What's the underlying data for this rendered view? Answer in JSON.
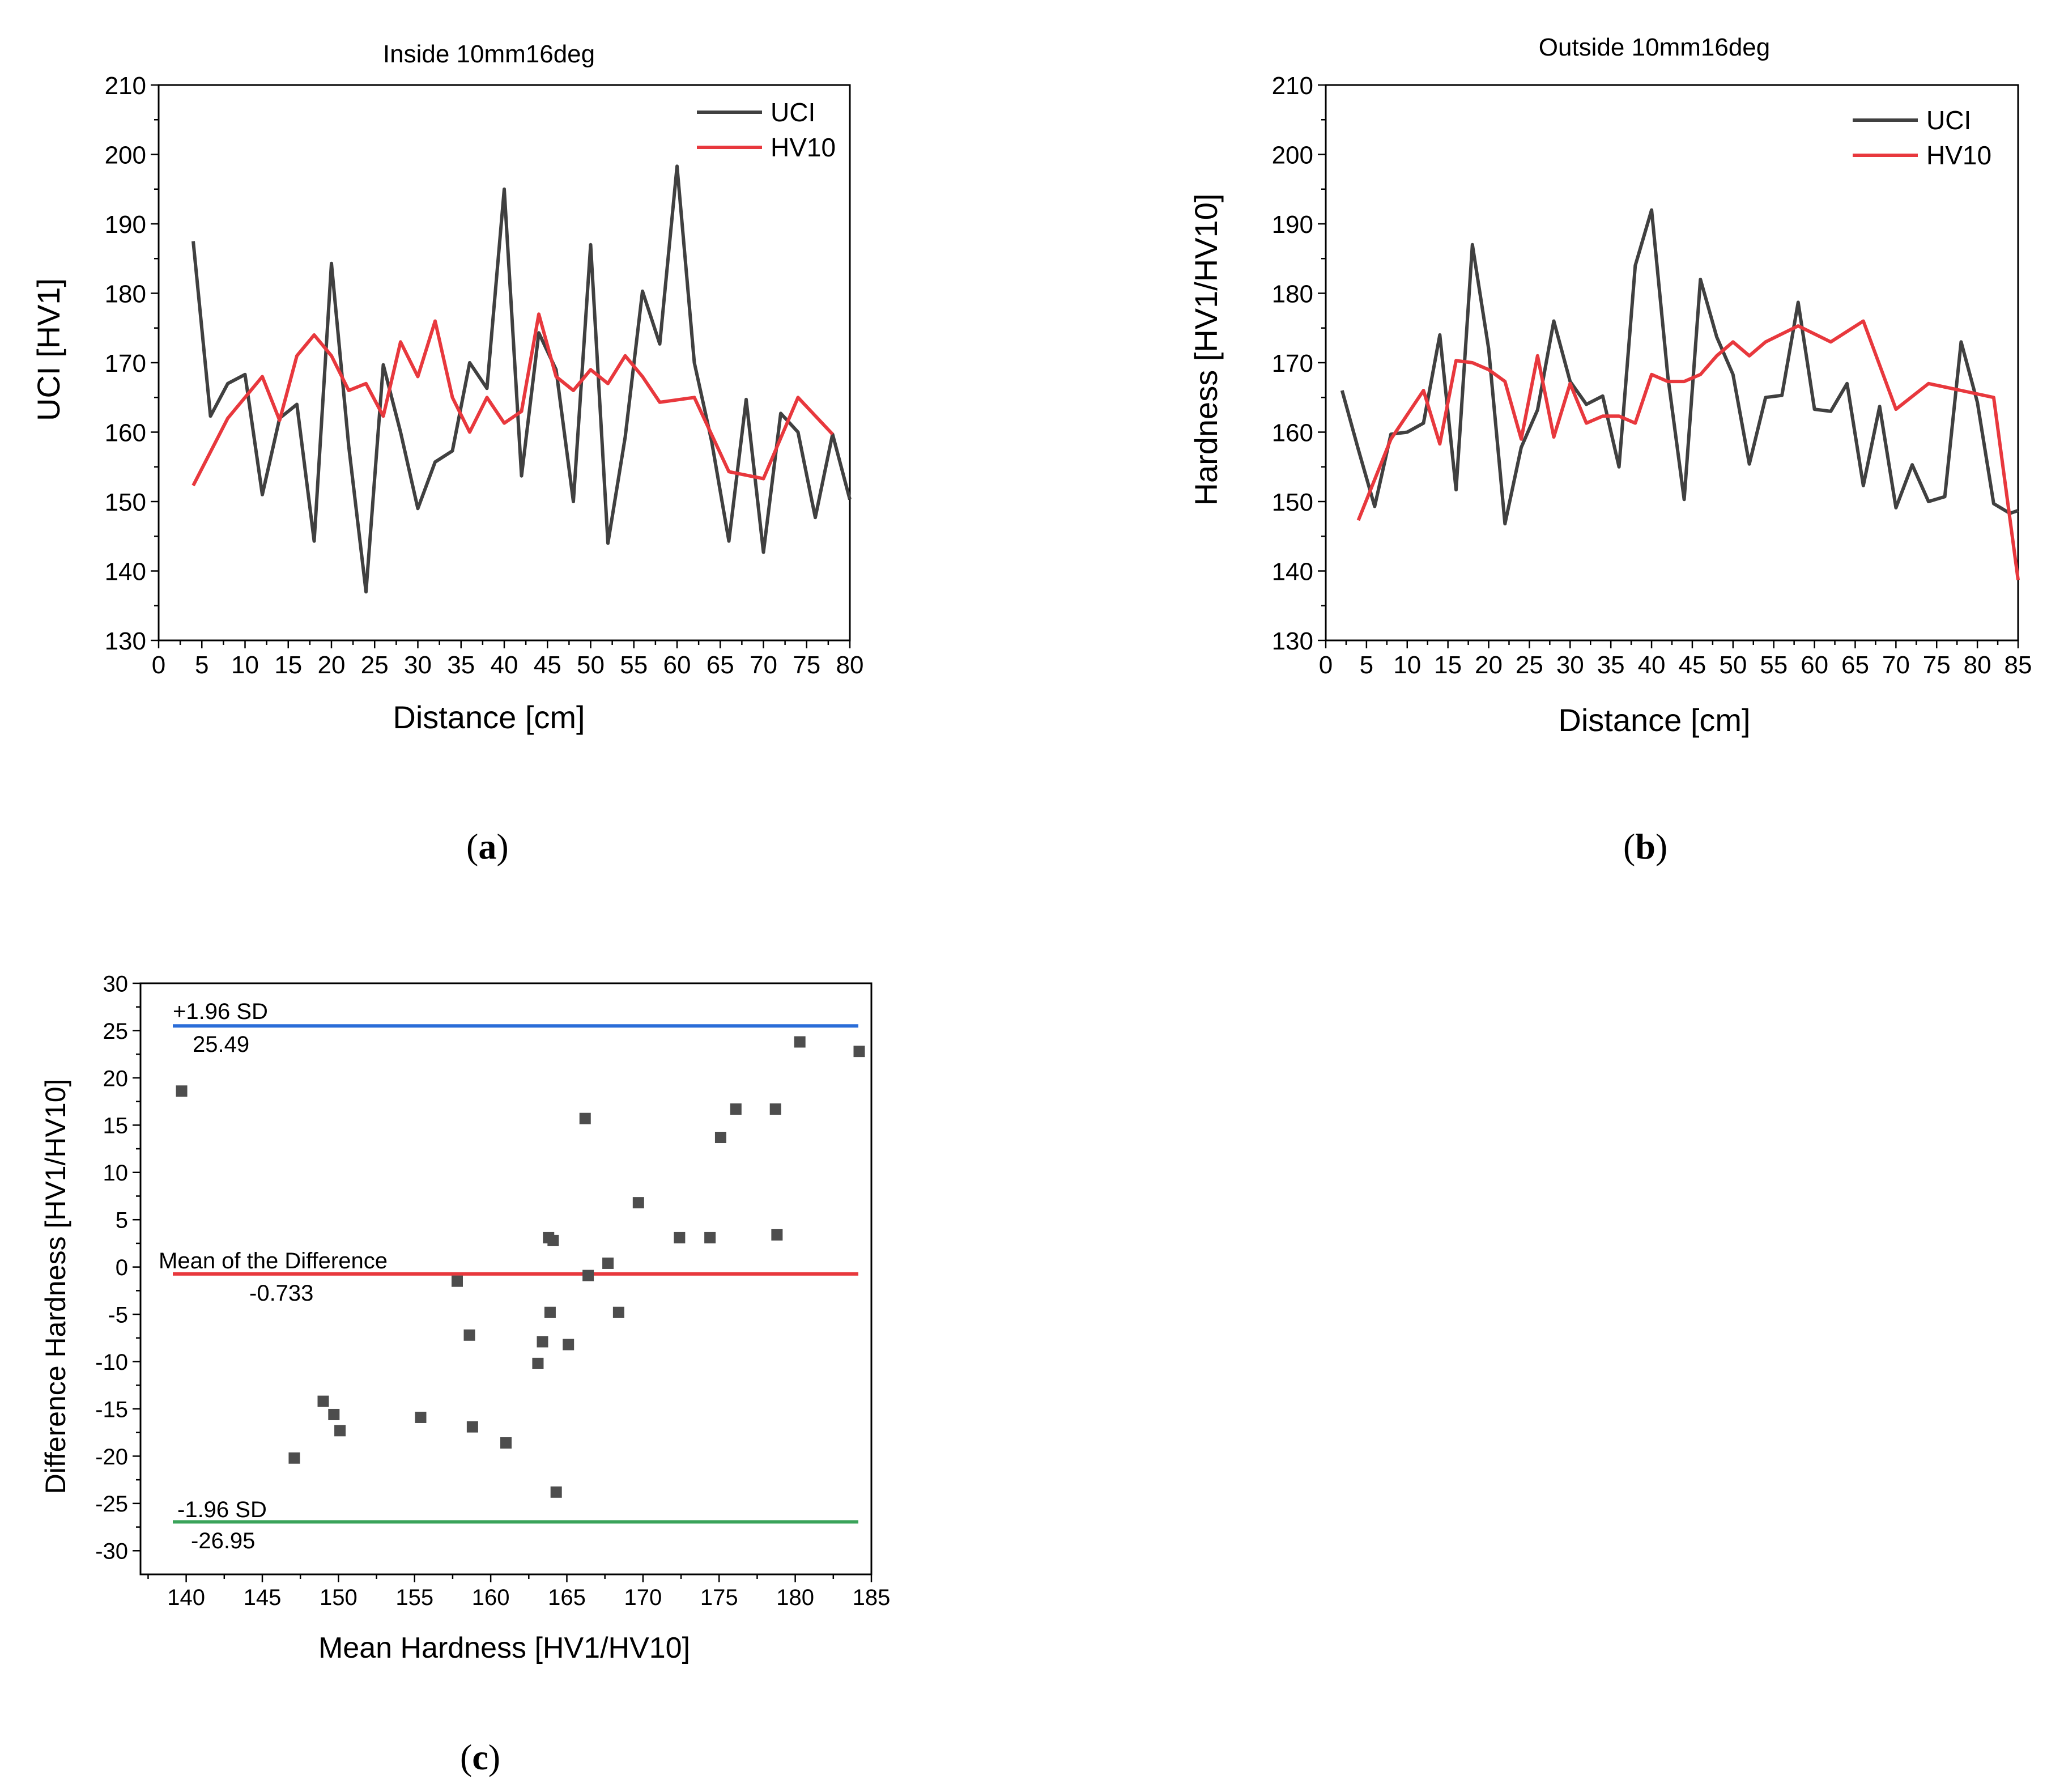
{
  "chart_data": [
    {
      "id": "a",
      "type": "line",
      "title": "Inside 10mm16deg",
      "xlabel": "Distance [cm]",
      "ylabel": "UCI [HV1]",
      "xlim": [
        0,
        80
      ],
      "ylim": [
        130,
        210
      ],
      "xticks": [
        "0",
        "5",
        "10",
        "15",
        "20",
        "25",
        "30",
        "35",
        "40",
        "45",
        "50",
        "55",
        "60",
        "65",
        "70",
        "75",
        "80"
      ],
      "yticks": [
        "130",
        "140",
        "150",
        "160",
        "170",
        "180",
        "190",
        "200",
        "210"
      ],
      "caption_letter": "a",
      "legend_position": "top-right",
      "series": [
        {
          "name": "UCI",
          "color": "#404040",
          "x": [
            4,
            6,
            8,
            10,
            12,
            14,
            16,
            18,
            20,
            22,
            24,
            26,
            28,
            30,
            32,
            34,
            36,
            38,
            40,
            42,
            44,
            46,
            48,
            50,
            52,
            54,
            56,
            58,
            60,
            62,
            64,
            66,
            68,
            70,
            72,
            74,
            76,
            78,
            80
          ],
          "y": [
            187.5,
            162.3,
            167,
            168.3,
            151,
            162,
            164,
            144.3,
            184.3,
            158,
            137,
            169.7,
            160,
            149,
            155.7,
            157.3,
            170,
            166.3,
            195,
            153.7,
            174.3,
            169,
            150,
            187,
            144,
            159.3,
            180.3,
            172.7,
            198.3,
            170,
            158.7,
            144.3,
            164.7,
            142.7,
            162.7,
            160,
            147.7,
            159.7,
            150.3
          ]
        },
        {
          "name": "HV10",
          "color": "#e8383d",
          "x": [
            4,
            8,
            12,
            14,
            16,
            18,
            20,
            22,
            24,
            26,
            28,
            30,
            32,
            34,
            36,
            38,
            40,
            42,
            44,
            46,
            48,
            50,
            52,
            54,
            56,
            58,
            62,
            66,
            70,
            74,
            78
          ],
          "y": [
            152.3,
            162,
            168,
            161.7,
            171,
            174,
            171,
            166,
            167,
            162.3,
            173,
            168,
            176,
            165,
            160,
            165,
            161.3,
            163,
            177,
            168,
            166,
            169,
            167,
            171,
            168,
            164.3,
            165,
            154.3,
            153.3,
            165,
            159.7
          ]
        }
      ]
    },
    {
      "id": "b",
      "type": "line",
      "title": "Outside 10mm16deg",
      "xlabel": "Distance [cm]",
      "ylabel": "Hardness [HV1/HV10]",
      "xlim": [
        0,
        85
      ],
      "ylim": [
        130,
        210
      ],
      "xticks": [
        "0",
        "5",
        "10",
        "15",
        "20",
        "25",
        "30",
        "35",
        "40",
        "45",
        "50",
        "55",
        "60",
        "65",
        "70",
        "75",
        "80",
        "85"
      ],
      "yticks": [
        "130",
        "140",
        "150",
        "160",
        "170",
        "180",
        "190",
        "200",
        "210"
      ],
      "caption_letter": "b",
      "legend_position": "top-right",
      "series": [
        {
          "name": "UCI",
          "color": "#404040",
          "x": [
            2,
            4,
            6,
            8,
            10,
            12,
            14,
            16,
            18,
            20,
            22,
            24,
            26,
            28,
            30,
            32,
            34,
            36,
            38,
            40,
            42,
            44,
            46,
            48,
            50,
            52,
            54,
            56,
            58,
            60,
            62,
            64,
            66,
            68,
            70,
            72,
            74,
            76,
            78,
            80,
            82,
            84,
            85
          ],
          "y": [
            166,
            157.5,
            149.3,
            159.7,
            160,
            161.3,
            174,
            151.7,
            187,
            172,
            146.8,
            157.8,
            163.2,
            176,
            167.3,
            164,
            165.2,
            155,
            184,
            192,
            168,
            150.3,
            182,
            173.7,
            168.3,
            155.4,
            165,
            165.3,
            178.7,
            163.3,
            163,
            167,
            152.3,
            163.7,
            149.1,
            155.3,
            150,
            150.7,
            173,
            164.3,
            149.7,
            148.3,
            148.7
          ]
        },
        {
          "name": "HV10",
          "color": "#e8383d",
          "x": [
            4,
            8,
            12,
            14,
            16,
            18,
            20,
            22,
            24,
            26,
            28,
            30,
            32,
            34,
            36,
            38,
            40,
            42,
            44,
            46,
            48,
            50,
            52,
            54,
            58,
            62,
            66,
            70,
            74,
            78,
            82,
            85
          ],
          "y": [
            147.3,
            159,
            166,
            158.3,
            170.3,
            170,
            169,
            167.3,
            159,
            171,
            159.3,
            167,
            161.3,
            162.3,
            162.3,
            161.3,
            168.3,
            167.3,
            167.3,
            168.3,
            171,
            173,
            171,
            173,
            175.3,
            173,
            176,
            163.3,
            167,
            166,
            165,
            138.7
          ]
        }
      ]
    },
    {
      "id": "c",
      "type": "scatter",
      "title": "",
      "xlabel": "Mean Hardness [HV1/HV10]",
      "ylabel": "Difference Hardness [HV1/HV10]",
      "xlim": [
        137,
        185
      ],
      "ylim": [
        -32.5,
        30
      ],
      "xticks": [
        "140",
        "145",
        "150",
        "155",
        "160",
        "165",
        "170",
        "175",
        "180",
        "185"
      ],
      "yticks": [
        "-30",
        "-25",
        "-20",
        "-15",
        "-10",
        "-5",
        "0",
        "5",
        "10",
        "15",
        "20",
        "25",
        "30"
      ],
      "caption_letter": "c",
      "marker_color": "#4d4d4d",
      "points": [
        [
          139.7,
          18.6
        ],
        [
          147.1,
          -20.2
        ],
        [
          149.0,
          -14.2
        ],
        [
          149.7,
          -15.6
        ],
        [
          150.1,
          -17.3
        ],
        [
          155.4,
          -15.9
        ],
        [
          157.8,
          -1.5
        ],
        [
          158.6,
          -7.2
        ],
        [
          158.8,
          -16.9
        ],
        [
          161.0,
          -18.6
        ],
        [
          163.1,
          -10.2
        ],
        [
          163.4,
          -7.9
        ],
        [
          163.8,
          3.1
        ],
        [
          163.9,
          -4.8
        ],
        [
          164.1,
          2.8
        ],
        [
          164.3,
          -23.8
        ],
        [
          165.1,
          -8.2
        ],
        [
          166.2,
          15.7
        ],
        [
          166.4,
          -0.9
        ],
        [
          167.7,
          0.4
        ],
        [
          168.4,
          -4.8
        ],
        [
          169.7,
          6.8
        ],
        [
          172.4,
          3.1
        ],
        [
          174.4,
          3.1
        ],
        [
          175.1,
          13.7
        ],
        [
          176.1,
          16.7
        ],
        [
          178.7,
          16.7
        ],
        [
          178.8,
          3.4
        ],
        [
          180.3,
          23.8
        ],
        [
          184.2,
          22.8
        ]
      ],
      "hlines": [
        {
          "name": "+1.96 SD",
          "value": 25.49,
          "value_label": "25.49",
          "color": "#2a6dd8"
        },
        {
          "name": "Mean of the Difference",
          "value": -0.733,
          "value_label": "-0.733",
          "color": "#e8383d"
        },
        {
          "name": "-1.96 SD",
          "value": -26.95,
          "value_label": "-26.95",
          "color": "#3aa35a"
        }
      ]
    }
  ]
}
